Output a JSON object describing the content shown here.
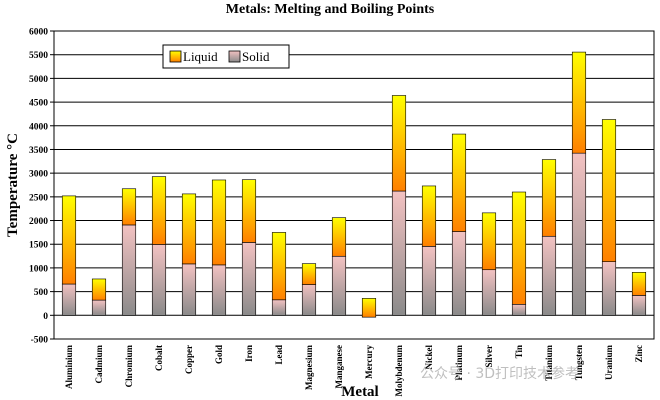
{
  "chart_data": {
    "type": "bar",
    "stacked": true,
    "title": "Metals: Melting and Boiling Points",
    "xlabel": "Metal",
    "ylabel": "Temperature °C",
    "ylim": [
      -500,
      6000
    ],
    "yticks": [
      -500,
      0,
      500,
      1000,
      1500,
      2000,
      2500,
      3000,
      3500,
      4000,
      4500,
      5000,
      5500,
      6000
    ],
    "grid": true,
    "legend_position": "top-left",
    "categories": [
      "Aluminium",
      "Cadmium",
      "Chromium",
      "Cobalt",
      "Copper",
      "Gold",
      "Iron",
      "Lead",
      "Magnesium",
      "Manganese",
      "Mercury",
      "Molybdenum",
      "Nickel",
      "Platinum",
      "Silver",
      "Tin",
      "Titanium",
      "Tungsten",
      "Uranium",
      "Zinc"
    ],
    "series": [
      {
        "name": "Solid",
        "values": [
          660,
          321,
          1907,
          1495,
          1085,
          1064,
          1538,
          327,
          650,
          1246,
          -39,
          2623,
          1455,
          1768,
          962,
          232,
          1668,
          3422,
          1132,
          420
        ]
      },
      {
        "name": "Liquid",
        "values": [
          1860,
          446,
          764,
          1432,
          1477,
          1792,
          1324,
          1422,
          441,
          815,
          396,
          2016,
          1275,
          2057,
          1200,
          2370,
          1619,
          2133,
          3000,
          487
        ]
      }
    ],
    "legend": [
      "Liquid",
      "Solid"
    ],
    "annotation": "公众号 · 3D打印技术参考"
  },
  "colors": {
    "solid_bottom": "#8a8a8a",
    "solid_top": "#f3c2c2",
    "liquid_bottom": "#ff7f00",
    "liquid_top": "#ffff00",
    "grid": "#000000"
  }
}
